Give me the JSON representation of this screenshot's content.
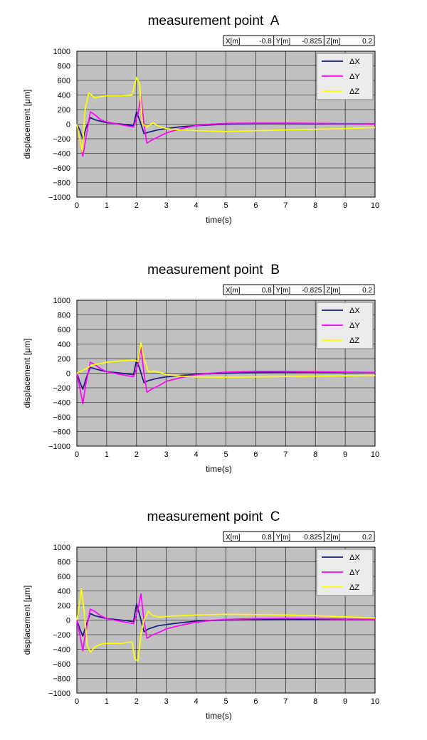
{
  "chart_data": [
    {
      "type": "line",
      "title": "measurement point  A",
      "coords": [
        {
          "label": "X[m]",
          "value": "-0.8"
        },
        {
          "label": "Y[m]",
          "value": "-0.825"
        },
        {
          "label": "Z[m]",
          "value": "0.2"
        }
      ],
      "xlabel": "time(s)",
      "ylabel": "displacement  [μm]",
      "xlim": [
        0,
        10
      ],
      "ylim": [
        -1000,
        1000
      ],
      "xticks": [
        0,
        1,
        2,
        3,
        4,
        5,
        6,
        7,
        8,
        9,
        10
      ],
      "yticks": [
        1000,
        800,
        600,
        400,
        200,
        0,
        -200,
        -400,
        -600,
        -800,
        -1000
      ],
      "grid": true,
      "legend_position": "top-right",
      "series": [
        {
          "name": "ΔX",
          "color": "#1a1a80",
          "points": [
            [
              0,
              0
            ],
            [
              0.1,
              -80
            ],
            [
              0.2,
              -210
            ],
            [
              0.3,
              -60
            ],
            [
              0.45,
              90
            ],
            [
              0.6,
              60
            ],
            [
              0.8,
              40
            ],
            [
              1,
              20
            ],
            [
              1.5,
              0
            ],
            [
              1.9,
              -20
            ],
            [
              2,
              170
            ],
            [
              2.1,
              60
            ],
            [
              2.25,
              -130
            ],
            [
              2.4,
              -110
            ],
            [
              2.7,
              -80
            ],
            [
              3,
              -60
            ],
            [
              3.5,
              -35
            ],
            [
              4,
              -20
            ],
            [
              5,
              0
            ],
            [
              6,
              10
            ],
            [
              7,
              10
            ],
            [
              8,
              5
            ],
            [
              9,
              5
            ],
            [
              10,
              5
            ]
          ]
        },
        {
          "name": "ΔY",
          "color": "#ff00ff",
          "points": [
            [
              0,
              0
            ],
            [
              0.1,
              -200
            ],
            [
              0.2,
              -440
            ],
            [
              0.3,
              -200
            ],
            [
              0.45,
              170
            ],
            [
              0.6,
              130
            ],
            [
              0.8,
              60
            ],
            [
              1,
              30
            ],
            [
              1.5,
              -10
            ],
            [
              1.9,
              -40
            ],
            [
              2.05,
              140
            ],
            [
              2.15,
              380
            ],
            [
              2.25,
              0
            ],
            [
              2.35,
              -260
            ],
            [
              2.5,
              -220
            ],
            [
              2.8,
              -160
            ],
            [
              3,
              -120
            ],
            [
              3.5,
              -60
            ],
            [
              4,
              -20
            ],
            [
              4.5,
              0
            ],
            [
              5,
              10
            ],
            [
              6,
              15
            ],
            [
              7,
              15
            ],
            [
              8,
              12
            ],
            [
              9,
              8
            ],
            [
              10,
              5
            ]
          ]
        },
        {
          "name": "ΔZ",
          "color": "#ffff00",
          "points": [
            [
              0,
              0
            ],
            [
              0.1,
              -200
            ],
            [
              0.18,
              -380
            ],
            [
              0.28,
              200
            ],
            [
              0.4,
              430
            ],
            [
              0.6,
              360
            ],
            [
              0.8,
              380
            ],
            [
              1,
              390
            ],
            [
              1.5,
              390
            ],
            [
              1.85,
              400
            ],
            [
              2,
              640
            ],
            [
              2.1,
              560
            ],
            [
              2.2,
              0
            ],
            [
              2.35,
              -40
            ],
            [
              2.55,
              20
            ],
            [
              2.75,
              -30
            ],
            [
              3,
              -60
            ],
            [
              3.5,
              -80
            ],
            [
              4,
              -90
            ],
            [
              5,
              -100
            ],
            [
              6,
              -90
            ],
            [
              7,
              -80
            ],
            [
              8,
              -70
            ],
            [
              9,
              -60
            ],
            [
              10,
              -45
            ]
          ]
        }
      ]
    },
    {
      "type": "line",
      "title": "measurement point  B",
      "coords": [
        {
          "label": "X[m]",
          "value": "0.8"
        },
        {
          "label": "Y[m]",
          "value": "-0.825"
        },
        {
          "label": "Z[m]",
          "value": "0.2"
        }
      ],
      "xlabel": "time(s)",
      "ylabel": "displacement  [μm]",
      "xlim": [
        0,
        10
      ],
      "ylim": [
        -1000,
        1000
      ],
      "xticks": [
        0,
        1,
        2,
        3,
        4,
        5,
        6,
        7,
        8,
        9,
        10
      ],
      "yticks": [
        1000,
        800,
        600,
        400,
        200,
        0,
        -200,
        -400,
        -600,
        -800,
        -1000
      ],
      "grid": true,
      "legend_position": "top-right",
      "series": [
        {
          "name": "ΔX",
          "color": "#1a1a80",
          "points": [
            [
              0,
              0
            ],
            [
              0.1,
              -120
            ],
            [
              0.2,
              -220
            ],
            [
              0.3,
              -80
            ],
            [
              0.45,
              80
            ],
            [
              0.6,
              60
            ],
            [
              0.8,
              40
            ],
            [
              1,
              20
            ],
            [
              1.5,
              0
            ],
            [
              1.9,
              -20
            ],
            [
              2,
              180
            ],
            [
              2.1,
              70
            ],
            [
              2.25,
              -130
            ],
            [
              2.4,
              -100
            ],
            [
              2.7,
              -70
            ],
            [
              3,
              -50
            ],
            [
              3.5,
              -30
            ],
            [
              4,
              -15
            ],
            [
              5,
              0
            ],
            [
              6,
              10
            ],
            [
              7,
              15
            ],
            [
              8,
              15
            ],
            [
              9,
              10
            ],
            [
              10,
              10
            ]
          ]
        },
        {
          "name": "ΔY",
          "color": "#ff00ff",
          "points": [
            [
              0,
              0
            ],
            [
              0.1,
              -200
            ],
            [
              0.2,
              -420
            ],
            [
              0.3,
              -150
            ],
            [
              0.45,
              150
            ],
            [
              0.6,
              120
            ],
            [
              0.8,
              60
            ],
            [
              1,
              20
            ],
            [
              1.5,
              -20
            ],
            [
              1.9,
              -50
            ],
            [
              2.05,
              120
            ],
            [
              2.15,
              350
            ],
            [
              2.25,
              0
            ],
            [
              2.35,
              -260
            ],
            [
              2.5,
              -220
            ],
            [
              2.8,
              -160
            ],
            [
              3,
              -110
            ],
            [
              3.5,
              -60
            ],
            [
              4,
              -20
            ],
            [
              4.5,
              0
            ],
            [
              5,
              15
            ],
            [
              6,
              25
            ],
            [
              7,
              25
            ],
            [
              8,
              20
            ],
            [
              9,
              15
            ],
            [
              10,
              10
            ]
          ]
        },
        {
          "name": "ΔZ",
          "color": "#ffff00",
          "points": [
            [
              0,
              0
            ],
            [
              0.15,
              30
            ],
            [
              0.3,
              60
            ],
            [
              0.5,
              110
            ],
            [
              1,
              150
            ],
            [
              1.5,
              170
            ],
            [
              1.9,
              180
            ],
            [
              2.05,
              160
            ],
            [
              2.15,
              420
            ],
            [
              2.25,
              200
            ],
            [
              2.4,
              20
            ],
            [
              2.6,
              30
            ],
            [
              2.8,
              10
            ],
            [
              3,
              -20
            ],
            [
              3.5,
              -40
            ],
            [
              4,
              -50
            ],
            [
              5,
              -55
            ],
            [
              6,
              -50
            ],
            [
              7,
              -45
            ],
            [
              8,
              -40
            ],
            [
              9,
              -35
            ],
            [
              10,
              -30
            ]
          ]
        }
      ]
    },
    {
      "type": "line",
      "title": "measurement point  C",
      "coords": [
        {
          "label": "X[m]",
          "value": "0.8"
        },
        {
          "label": "Y[m]",
          "value": "0.825"
        },
        {
          "label": "Z[m]",
          "value": "0.2"
        }
      ],
      "xlabel": "time(s)",
      "ylabel": "displacement  [μm]",
      "xlim": [
        0,
        10
      ],
      "ylim": [
        -1000,
        1000
      ],
      "xticks": [
        0,
        1,
        2,
        3,
        4,
        5,
        6,
        7,
        8,
        9,
        10
      ],
      "yticks": [
        1000,
        800,
        600,
        400,
        200,
        0,
        -200,
        -400,
        -600,
        -800,
        -1000
      ],
      "grid": true,
      "legend_position": "top-right",
      "series": [
        {
          "name": "ΔX",
          "color": "#1a1a80",
          "points": [
            [
              0,
              0
            ],
            [
              0.1,
              -120
            ],
            [
              0.2,
              -220
            ],
            [
              0.3,
              -80
            ],
            [
              0.45,
              90
            ],
            [
              0.6,
              60
            ],
            [
              0.8,
              40
            ],
            [
              1,
              20
            ],
            [
              1.5,
              0
            ],
            [
              1.9,
              -20
            ],
            [
              2,
              220
            ],
            [
              2.1,
              80
            ],
            [
              2.25,
              -160
            ],
            [
              2.4,
              -120
            ],
            [
              2.7,
              -80
            ],
            [
              3,
              -60
            ],
            [
              3.5,
              -35
            ],
            [
              4,
              -15
            ],
            [
              5,
              0
            ],
            [
              6,
              5
            ],
            [
              7,
              10
            ],
            [
              8,
              10
            ],
            [
              9,
              10
            ],
            [
              10,
              5
            ]
          ]
        },
        {
          "name": "ΔY",
          "color": "#ff00ff",
          "points": [
            [
              0,
              0
            ],
            [
              0.1,
              -200
            ],
            [
              0.2,
              -420
            ],
            [
              0.3,
              -150
            ],
            [
              0.45,
              150
            ],
            [
              0.6,
              120
            ],
            [
              0.8,
              60
            ],
            [
              1,
              20
            ],
            [
              1.5,
              -20
            ],
            [
              1.9,
              -50
            ],
            [
              2.05,
              150
            ],
            [
              2.15,
              360
            ],
            [
              2.25,
              0
            ],
            [
              2.35,
              -250
            ],
            [
              2.5,
              -210
            ],
            [
              2.8,
              -160
            ],
            [
              3,
              -120
            ],
            [
              3.5,
              -70
            ],
            [
              4,
              -30
            ],
            [
              4.5,
              -5
            ],
            [
              5,
              10
            ],
            [
              6,
              20
            ],
            [
              7,
              25
            ],
            [
              8,
              20
            ],
            [
              9,
              15
            ],
            [
              10,
              10
            ]
          ]
        },
        {
          "name": "ΔZ",
          "color": "#ffff00",
          "points": [
            [
              0,
              0
            ],
            [
              0.08,
              200
            ],
            [
              0.15,
              430
            ],
            [
              0.25,
              100
            ],
            [
              0.35,
              -350
            ],
            [
              0.45,
              -440
            ],
            [
              0.6,
              -370
            ],
            [
              0.8,
              -330
            ],
            [
              1,
              -320
            ],
            [
              1.5,
              -320
            ],
            [
              1.85,
              -300
            ],
            [
              1.95,
              -540
            ],
            [
              2.05,
              -560
            ],
            [
              2.15,
              -200
            ],
            [
              2.25,
              0
            ],
            [
              2.4,
              120
            ],
            [
              2.55,
              60
            ],
            [
              2.8,
              40
            ],
            [
              3,
              50
            ],
            [
              3.5,
              60
            ],
            [
              4,
              70
            ],
            [
              5,
              80
            ],
            [
              6,
              75
            ],
            [
              7,
              70
            ],
            [
              8,
              60
            ],
            [
              9,
              45
            ],
            [
              10,
              30
            ]
          ]
        }
      ]
    }
  ]
}
